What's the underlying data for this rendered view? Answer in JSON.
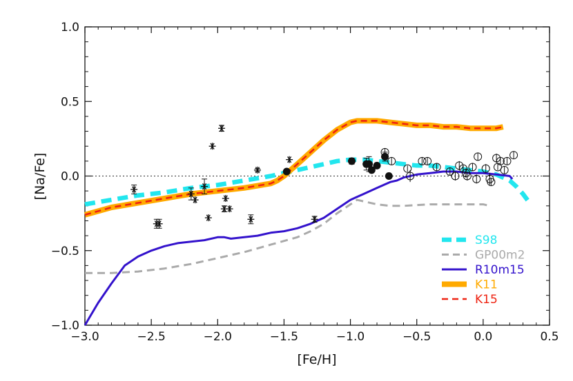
{
  "chart_data": {
    "type": "scatter",
    "xlabel": "[Fe/H]",
    "ylabel": "[Na/Fe]",
    "xlim": [
      -3.0,
      0.5
    ],
    "ylim": [
      -1.0,
      1.0
    ],
    "x_ticks": [
      -3.0,
      -2.5,
      -2.0,
      -1.5,
      -1.0,
      -0.5,
      0.0,
      0.5
    ],
    "x_tick_labels": [
      "−3.0",
      "−2.5",
      "−2.0",
      "−1.5",
      "−1.0",
      "−0.5",
      "0.0",
      "0.5"
    ],
    "y_ticks": [
      -1.0,
      -0.5,
      0.0,
      0.5,
      1.0
    ],
    "y_tick_labels": [
      "−1.0",
      "−0.5",
      "0.0",
      "0.5",
      "1.0"
    ],
    "reference_line_y": 0.0,
    "legend_position": "bottom-right",
    "series": [
      {
        "name": "S98",
        "color": "#22e6ee",
        "style": "dashed",
        "x": [
          -3.0,
          -2.8,
          -2.6,
          -2.4,
          -2.2,
          -2.0,
          -1.8,
          -1.6,
          -1.5,
          -1.4,
          -1.3,
          -1.2,
          -1.1,
          -1.0,
          -0.9,
          -0.8,
          -0.7,
          -0.6,
          -0.5,
          -0.4,
          -0.3,
          -0.2,
          -0.1,
          0.0,
          0.1,
          0.2,
          0.25,
          0.3,
          0.35
        ],
        "y": [
          -0.19,
          -0.16,
          -0.13,
          -0.11,
          -0.08,
          -0.06,
          -0.03,
          0.0,
          0.02,
          0.04,
          0.06,
          0.08,
          0.1,
          0.11,
          0.11,
          0.1,
          0.09,
          0.08,
          0.07,
          0.07,
          0.06,
          0.05,
          0.04,
          0.03,
          0.01,
          -0.03,
          -0.07,
          -0.12,
          -0.18
        ]
      },
      {
        "name": "GP00m2",
        "color": "#aaaaaa",
        "style": "dashed",
        "x": [
          -3.0,
          -2.8,
          -2.6,
          -2.4,
          -2.2,
          -2.0,
          -1.8,
          -1.6,
          -1.4,
          -1.3,
          -1.2,
          -1.1,
          -1.0,
          -0.95,
          -0.9,
          -0.8,
          -0.7,
          -0.6,
          -0.4,
          -0.2,
          0.0,
          0.05
        ],
        "y": [
          -0.65,
          -0.65,
          -0.64,
          -0.62,
          -0.59,
          -0.55,
          -0.51,
          -0.46,
          -0.41,
          -0.37,
          -0.32,
          -0.25,
          -0.19,
          -0.16,
          -0.17,
          -0.19,
          -0.2,
          -0.2,
          -0.19,
          -0.19,
          -0.19,
          -0.2
        ]
      },
      {
        "name": "R10m15",
        "color": "#3312cc",
        "style": "solid",
        "x": [
          -3.0,
          -2.9,
          -2.8,
          -2.7,
          -2.6,
          -2.5,
          -2.4,
          -2.3,
          -2.2,
          -2.1,
          -2.0,
          -1.95,
          -1.9,
          -1.8,
          -1.7,
          -1.6,
          -1.5,
          -1.4,
          -1.3,
          -1.2,
          -1.1,
          -1.0,
          -0.95,
          -0.9,
          -0.85,
          -0.8,
          -0.75,
          -0.7,
          -0.65,
          -0.6,
          -0.5,
          -0.4,
          -0.3,
          -0.2,
          -0.1,
          0.0,
          0.1,
          0.2,
          0.22
        ],
        "y": [
          -1.0,
          -0.85,
          -0.72,
          -0.6,
          -0.54,
          -0.5,
          -0.47,
          -0.45,
          -0.44,
          -0.43,
          -0.41,
          -0.41,
          -0.42,
          -0.41,
          -0.4,
          -0.38,
          -0.37,
          -0.35,
          -0.32,
          -0.28,
          -0.22,
          -0.16,
          -0.14,
          -0.12,
          -0.1,
          -0.08,
          -0.06,
          -0.04,
          -0.03,
          -0.01,
          0.01,
          0.02,
          0.03,
          0.03,
          0.02,
          0.02,
          0.01,
          0.0,
          -0.02
        ]
      },
      {
        "name": "K11",
        "color": "#ffaa00",
        "style": "thick",
        "x": [
          -3.0,
          -2.8,
          -2.6,
          -2.4,
          -2.2,
          -2.0,
          -1.8,
          -1.6,
          -1.55,
          -1.5,
          -1.45,
          -1.4,
          -1.3,
          -1.2,
          -1.1,
          -1.0,
          -0.95,
          -0.9,
          -0.8,
          -0.7,
          -0.6,
          -0.5,
          -0.4,
          -0.3,
          -0.2,
          -0.1,
          0.0,
          0.1,
          0.15
        ],
        "y": [
          -0.26,
          -0.21,
          -0.18,
          -0.15,
          -0.12,
          -0.1,
          -0.08,
          -0.05,
          -0.03,
          0.0,
          0.04,
          0.08,
          0.16,
          0.24,
          0.31,
          0.36,
          0.37,
          0.37,
          0.37,
          0.36,
          0.35,
          0.34,
          0.34,
          0.33,
          0.33,
          0.32,
          0.32,
          0.32,
          0.33
        ]
      },
      {
        "name": "K15",
        "color": "#ee2211",
        "style": "dashed",
        "x": [
          -3.0,
          -2.8,
          -2.6,
          -2.4,
          -2.2,
          -2.0,
          -1.8,
          -1.6,
          -1.55,
          -1.5,
          -1.45,
          -1.4,
          -1.3,
          -1.2,
          -1.1,
          -1.0,
          -0.95,
          -0.9,
          -0.8,
          -0.7,
          -0.6,
          -0.5,
          -0.4,
          -0.3,
          -0.2,
          -0.1,
          0.0,
          0.1,
          0.15
        ],
        "y": [
          -0.26,
          -0.21,
          -0.18,
          -0.15,
          -0.12,
          -0.1,
          -0.08,
          -0.05,
          -0.03,
          0.0,
          0.04,
          0.08,
          0.16,
          0.24,
          0.31,
          0.36,
          0.37,
          0.37,
          0.37,
          0.36,
          0.35,
          0.34,
          0.34,
          0.33,
          0.33,
          0.32,
          0.32,
          0.32,
          0.33
        ]
      }
    ],
    "points_star": [
      [
        -2.63,
        -0.09,
        0.03
      ],
      [
        -2.46,
        -0.32,
        0.03
      ],
      [
        -2.44,
        -0.32,
        0.03
      ],
      [
        -2.2,
        -0.12,
        0.04
      ],
      [
        -2.17,
        -0.16,
        0.0
      ],
      [
        -2.1,
        -0.07,
        0.05
      ],
      [
        -2.07,
        -0.28,
        0.0
      ],
      [
        -2.04,
        0.2,
        0.0
      ],
      [
        -1.97,
        0.32,
        0.02
      ],
      [
        -1.95,
        -0.22,
        0.02
      ],
      [
        -1.94,
        -0.15,
        0.0
      ],
      [
        -1.91,
        -0.22,
        0.0
      ],
      [
        -1.75,
        -0.29,
        0.03
      ],
      [
        -1.7,
        0.04,
        0.01
      ],
      [
        -1.46,
        0.11,
        0.0
      ],
      [
        -1.27,
        -0.29,
        0.02
      ]
    ],
    "points_filled": [
      [
        -1.48,
        0.03,
        0.0
      ],
      [
        -0.99,
        0.1,
        0.02
      ],
      [
        -0.88,
        0.08,
        0.04
      ],
      [
        -0.86,
        0.08,
        0.05
      ],
      [
        -0.84,
        0.04,
        0.0
      ],
      [
        -0.8,
        0.07,
        0.0
      ],
      [
        -0.74,
        0.13,
        0.03
      ],
      [
        -0.71,
        0.0,
        0.0
      ]
    ],
    "points_open": [
      [
        -0.74,
        0.16,
        0.0
      ],
      [
        -0.69,
        0.1,
        0.0
      ],
      [
        -0.57,
        0.05,
        0.02
      ],
      [
        -0.55,
        0.0,
        0.04
      ],
      [
        -0.46,
        0.1,
        0.0
      ],
      [
        -0.42,
        0.1,
        0.0
      ],
      [
        -0.35,
        0.06,
        0.0
      ],
      [
        -0.25,
        0.03,
        0.0
      ],
      [
        -0.21,
        0.0,
        0.03
      ],
      [
        -0.18,
        0.07,
        0.03
      ],
      [
        -0.15,
        0.05,
        0.02
      ],
      [
        -0.13,
        0.02,
        0.03
      ],
      [
        -0.12,
        0.0,
        0.03
      ],
      [
        -0.08,
        0.06,
        0.0
      ],
      [
        -0.05,
        -0.02,
        0.03
      ],
      [
        -0.04,
        0.13,
        0.0
      ],
      [
        0.02,
        0.05,
        0.03
      ],
      [
        0.05,
        -0.02,
        0.04
      ],
      [
        0.06,
        -0.04,
        0.0
      ],
      [
        0.1,
        0.12,
        0.03
      ],
      [
        0.11,
        0.06,
        0.02
      ],
      [
        0.13,
        0.1,
        0.02
      ],
      [
        0.16,
        0.04,
        0.0
      ],
      [
        0.18,
        0.1,
        0.0
      ],
      [
        0.23,
        0.14,
        0.0
      ]
    ]
  }
}
